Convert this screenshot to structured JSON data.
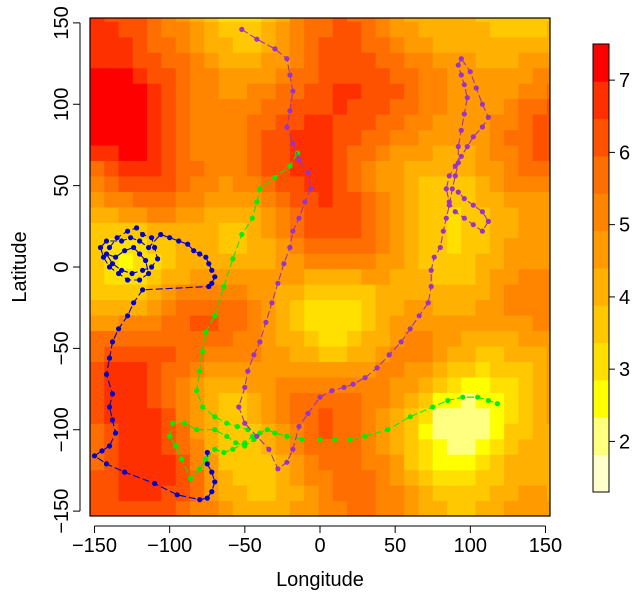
{
  "chart_data": {
    "type": "heatmap",
    "title": "",
    "xlabel": "Longitude",
    "ylabel": "Latitude",
    "xlim": [
      -153,
      153
    ],
    "ylim": [
      -153,
      153
    ],
    "x_ticks": [
      -150,
      -100,
      -50,
      0,
      50,
      100,
      150
    ],
    "y_ticks": [
      -150,
      -100,
      -50,
      0,
      50,
      100,
      150
    ],
    "grid": false,
    "colorbar": {
      "ticks": [
        2,
        3,
        4,
        5,
        6,
        7
      ],
      "range": [
        1.3,
        7.5
      ],
      "palette": [
        "#FFFFCC",
        "#FFFF80",
        "#FFFF00",
        "#FFE000",
        "#FFC800",
        "#FFB000",
        "#FF9A00",
        "#FF8400",
        "#FF6E00",
        "#FF5200",
        "#FF3000",
        "#FF0000"
      ],
      "position": "right"
    },
    "heat_hotspots_high": [
      {
        "x": -120,
        "y": 75,
        "v": 7.2
      },
      {
        "x": -145,
        "y": 145,
        "v": 7.0
      },
      {
        "x": 5,
        "y": 115,
        "v": 6.7
      },
      {
        "x": 5,
        "y": 38,
        "v": 6.4
      },
      {
        "x": -125,
        "y": -95,
        "v": 6.3
      },
      {
        "x": 145,
        "y": 80,
        "v": 6.4
      },
      {
        "x": -95,
        "y": -30,
        "v": 6.1
      },
      {
        "x": 20,
        "y": -95,
        "v": 6.0
      },
      {
        "x": -125,
        "y": -150,
        "v": 6.2
      }
    ],
    "heat_hotspots_low": [
      {
        "x": 95,
        "y": -100,
        "v": 1.4
      },
      {
        "x": -125,
        "y": 8,
        "v": 2.4
      },
      {
        "x": 95,
        "y": 40,
        "v": 2.7
      },
      {
        "x": -55,
        "y": 148,
        "v": 2.9
      },
      {
        "x": 15,
        "y": -25,
        "v": 2.9
      },
      {
        "x": -55,
        "y": -105,
        "v": 3.2
      },
      {
        "x": 135,
        "y": 150,
        "v": 3.0
      },
      {
        "x": -68,
        "y": 12,
        "v": 3.6
      }
    ],
    "series": [
      {
        "color": "#0000CC",
        "points": [
          [
            -140,
            12
          ],
          [
            -135,
            18
          ],
          [
            -128,
            22
          ],
          [
            -122,
            24
          ],
          [
            -118,
            20
          ],
          [
            -112,
            18
          ],
          [
            -110,
            12
          ],
          [
            -108,
            5
          ],
          [
            -112,
            0
          ],
          [
            -118,
            -2
          ],
          [
            -125,
            -4
          ],
          [
            -132,
            -2
          ],
          [
            -138,
            2
          ],
          [
            -142,
            8
          ],
          [
            -136,
            6
          ],
          [
            -130,
            10
          ],
          [
            -124,
            12
          ],
          [
            -120,
            8
          ],
          [
            -116,
            4
          ],
          [
            -114,
            -4
          ],
          [
            -120,
            -8
          ],
          [
            -128,
            -8
          ],
          [
            -134,
            -4
          ],
          [
            -140,
            0
          ],
          [
            -144,
            6
          ],
          [
            -146,
            12
          ],
          [
            -142,
            16
          ],
          [
            -132,
            16
          ],
          [
            -126,
            18
          ],
          [
            -120,
            16
          ],
          [
            -114,
            12
          ],
          [
            -106,
            20
          ],
          [
            -100,
            18
          ],
          [
            -94,
            16
          ],
          [
            -88,
            14
          ],
          [
            -84,
            10
          ],
          [
            -80,
            8
          ],
          [
            -76,
            6
          ],
          [
            -74,
            2
          ],
          [
            -72,
            -2
          ],
          [
            -70,
            -6
          ],
          [
            -72,
            -10
          ],
          [
            -74,
            -12
          ],
          [
            -118,
            -14
          ],
          [
            -124,
            -22
          ],
          [
            -128,
            -30
          ],
          [
            -134,
            -38
          ],
          [
            -138,
            -46
          ],
          [
            -140,
            -56
          ],
          [
            -142,
            -66
          ],
          [
            -138,
            -78
          ],
          [
            -140,
            -86
          ],
          [
            -138,
            -94
          ],
          [
            -136,
            -102
          ],
          [
            -140,
            -110
          ],
          [
            -145,
            -113
          ],
          [
            -150,
            -116
          ],
          [
            -142,
            -121
          ],
          [
            -130,
            -126
          ],
          [
            -110,
            -133
          ],
          [
            -95,
            -140
          ],
          [
            -80,
            -143
          ],
          [
            -75,
            -142
          ],
          [
            -72,
            -138
          ],
          [
            -70,
            -132
          ],
          [
            -72,
            -126
          ],
          [
            -75,
            -121
          ],
          [
            -75,
            -114
          ]
        ]
      },
      {
        "color": "#00EE00",
        "points": [
          [
            -15,
            70
          ],
          [
            -20,
            62
          ],
          [
            -30,
            55
          ],
          [
            -40,
            48
          ],
          [
            -42,
            40
          ],
          [
            -45,
            30
          ],
          [
            -52,
            20
          ],
          [
            -58,
            5
          ],
          [
            -64,
            -12
          ],
          [
            -70,
            -30
          ],
          [
            -76,
            -40
          ],
          [
            -78,
            -52
          ],
          [
            -80,
            -64
          ],
          [
            -82,
            -76
          ],
          [
            -78,
            -86
          ],
          [
            -70,
            -92
          ],
          [
            -62,
            -96
          ],
          [
            -55,
            -98
          ],
          [
            -48,
            -100
          ],
          [
            -45,
            -104
          ],
          [
            -50,
            -108
          ],
          [
            -58,
            -112
          ],
          [
            -64,
            -114
          ],
          [
            -70,
            -112
          ],
          [
            -76,
            -118
          ],
          [
            -80,
            -124
          ],
          [
            -86,
            -130
          ],
          [
            -92,
            -118
          ],
          [
            -96,
            -110
          ],
          [
            -100,
            -104
          ],
          [
            -98,
            -96
          ],
          [
            -90,
            -96
          ],
          [
            -82,
            -100
          ],
          [
            -70,
            -100
          ],
          [
            -62,
            -104
          ],
          [
            -56,
            -108
          ],
          [
            -50,
            -110
          ],
          [
            -44,
            -106
          ],
          [
            -40,
            -102
          ],
          [
            -35,
            -100
          ],
          [
            -30,
            -102
          ],
          [
            -22,
            -104
          ],
          [
            -12,
            -106
          ],
          [
            0,
            -106
          ],
          [
            10,
            -106
          ],
          [
            20,
            -106
          ],
          [
            30,
            -104
          ],
          [
            45,
            -100
          ],
          [
            60,
            -92
          ],
          [
            75,
            -86
          ],
          [
            85,
            -82
          ],
          [
            95,
            -80
          ],
          [
            105,
            -80
          ],
          [
            112,
            -82
          ],
          [
            118,
            -84
          ]
        ]
      },
      {
        "color": "#9933CC",
        "points": [
          [
            -52,
            146
          ],
          [
            -42,
            140
          ],
          [
            -30,
            134
          ],
          [
            -22,
            128
          ],
          [
            -20,
            118
          ],
          [
            -18,
            108
          ],
          [
            -20,
            96
          ],
          [
            -22,
            86
          ],
          [
            -18,
            76
          ],
          [
            -14,
            66
          ],
          [
            -8,
            58
          ],
          [
            -6,
            48
          ],
          [
            -10,
            40
          ],
          [
            -14,
            30
          ],
          [
            -18,
            22
          ],
          [
            -20,
            12
          ],
          [
            -24,
            2
          ],
          [
            -28,
            -10
          ],
          [
            -32,
            -22
          ],
          [
            -36,
            -34
          ],
          [
            -40,
            -46
          ],
          [
            -44,
            -54
          ],
          [
            -48,
            -64
          ],
          [
            -50,
            -74
          ],
          [
            -54,
            -86
          ],
          [
            -50,
            -96
          ],
          [
            -42,
            -104
          ],
          [
            -34,
            -112
          ],
          [
            -28,
            -124
          ],
          [
            -22,
            -120
          ],
          [
            -18,
            -112
          ],
          [
            -14,
            -98
          ],
          [
            -8,
            -90
          ],
          [
            0,
            -80
          ],
          [
            8,
            -76
          ],
          [
            16,
            -74
          ],
          [
            22,
            -72
          ],
          [
            30,
            -68
          ],
          [
            38,
            -62
          ],
          [
            46,
            -54
          ],
          [
            54,
            -46
          ],
          [
            60,
            -38
          ],
          [
            66,
            -30
          ],
          [
            72,
            -22
          ],
          [
            74,
            -12
          ],
          [
            74,
            -2
          ],
          [
            76,
            6
          ],
          [
            80,
            12
          ],
          [
            82,
            22
          ],
          [
            84,
            30
          ],
          [
            86,
            38
          ],
          [
            88,
            48
          ],
          [
            90,
            56
          ],
          [
            92,
            64
          ],
          [
            92,
            74
          ],
          [
            94,
            84
          ],
          [
            96,
            94
          ],
          [
            98,
            104
          ],
          [
            96,
            112
          ],
          [
            94,
            118
          ],
          [
            92,
            124
          ],
          [
            94,
            128
          ],
          [
            100,
            120
          ],
          [
            104,
            110
          ],
          [
            108,
            100
          ],
          [
            112,
            92
          ],
          [
            108,
            86
          ],
          [
            102,
            80
          ],
          [
            98,
            74
          ],
          [
            94,
            68
          ],
          [
            90,
            62
          ],
          [
            86,
            56
          ],
          [
            84,
            48
          ],
          [
            86,
            40
          ],
          [
            90,
            34
          ],
          [
            96,
            30
          ],
          [
            102,
            26
          ],
          [
            108,
            22
          ],
          [
            112,
            28
          ],
          [
            108,
            34
          ],
          [
            102,
            38
          ],
          [
            96,
            42
          ],
          [
            92,
            46
          ]
        ]
      }
    ]
  }
}
